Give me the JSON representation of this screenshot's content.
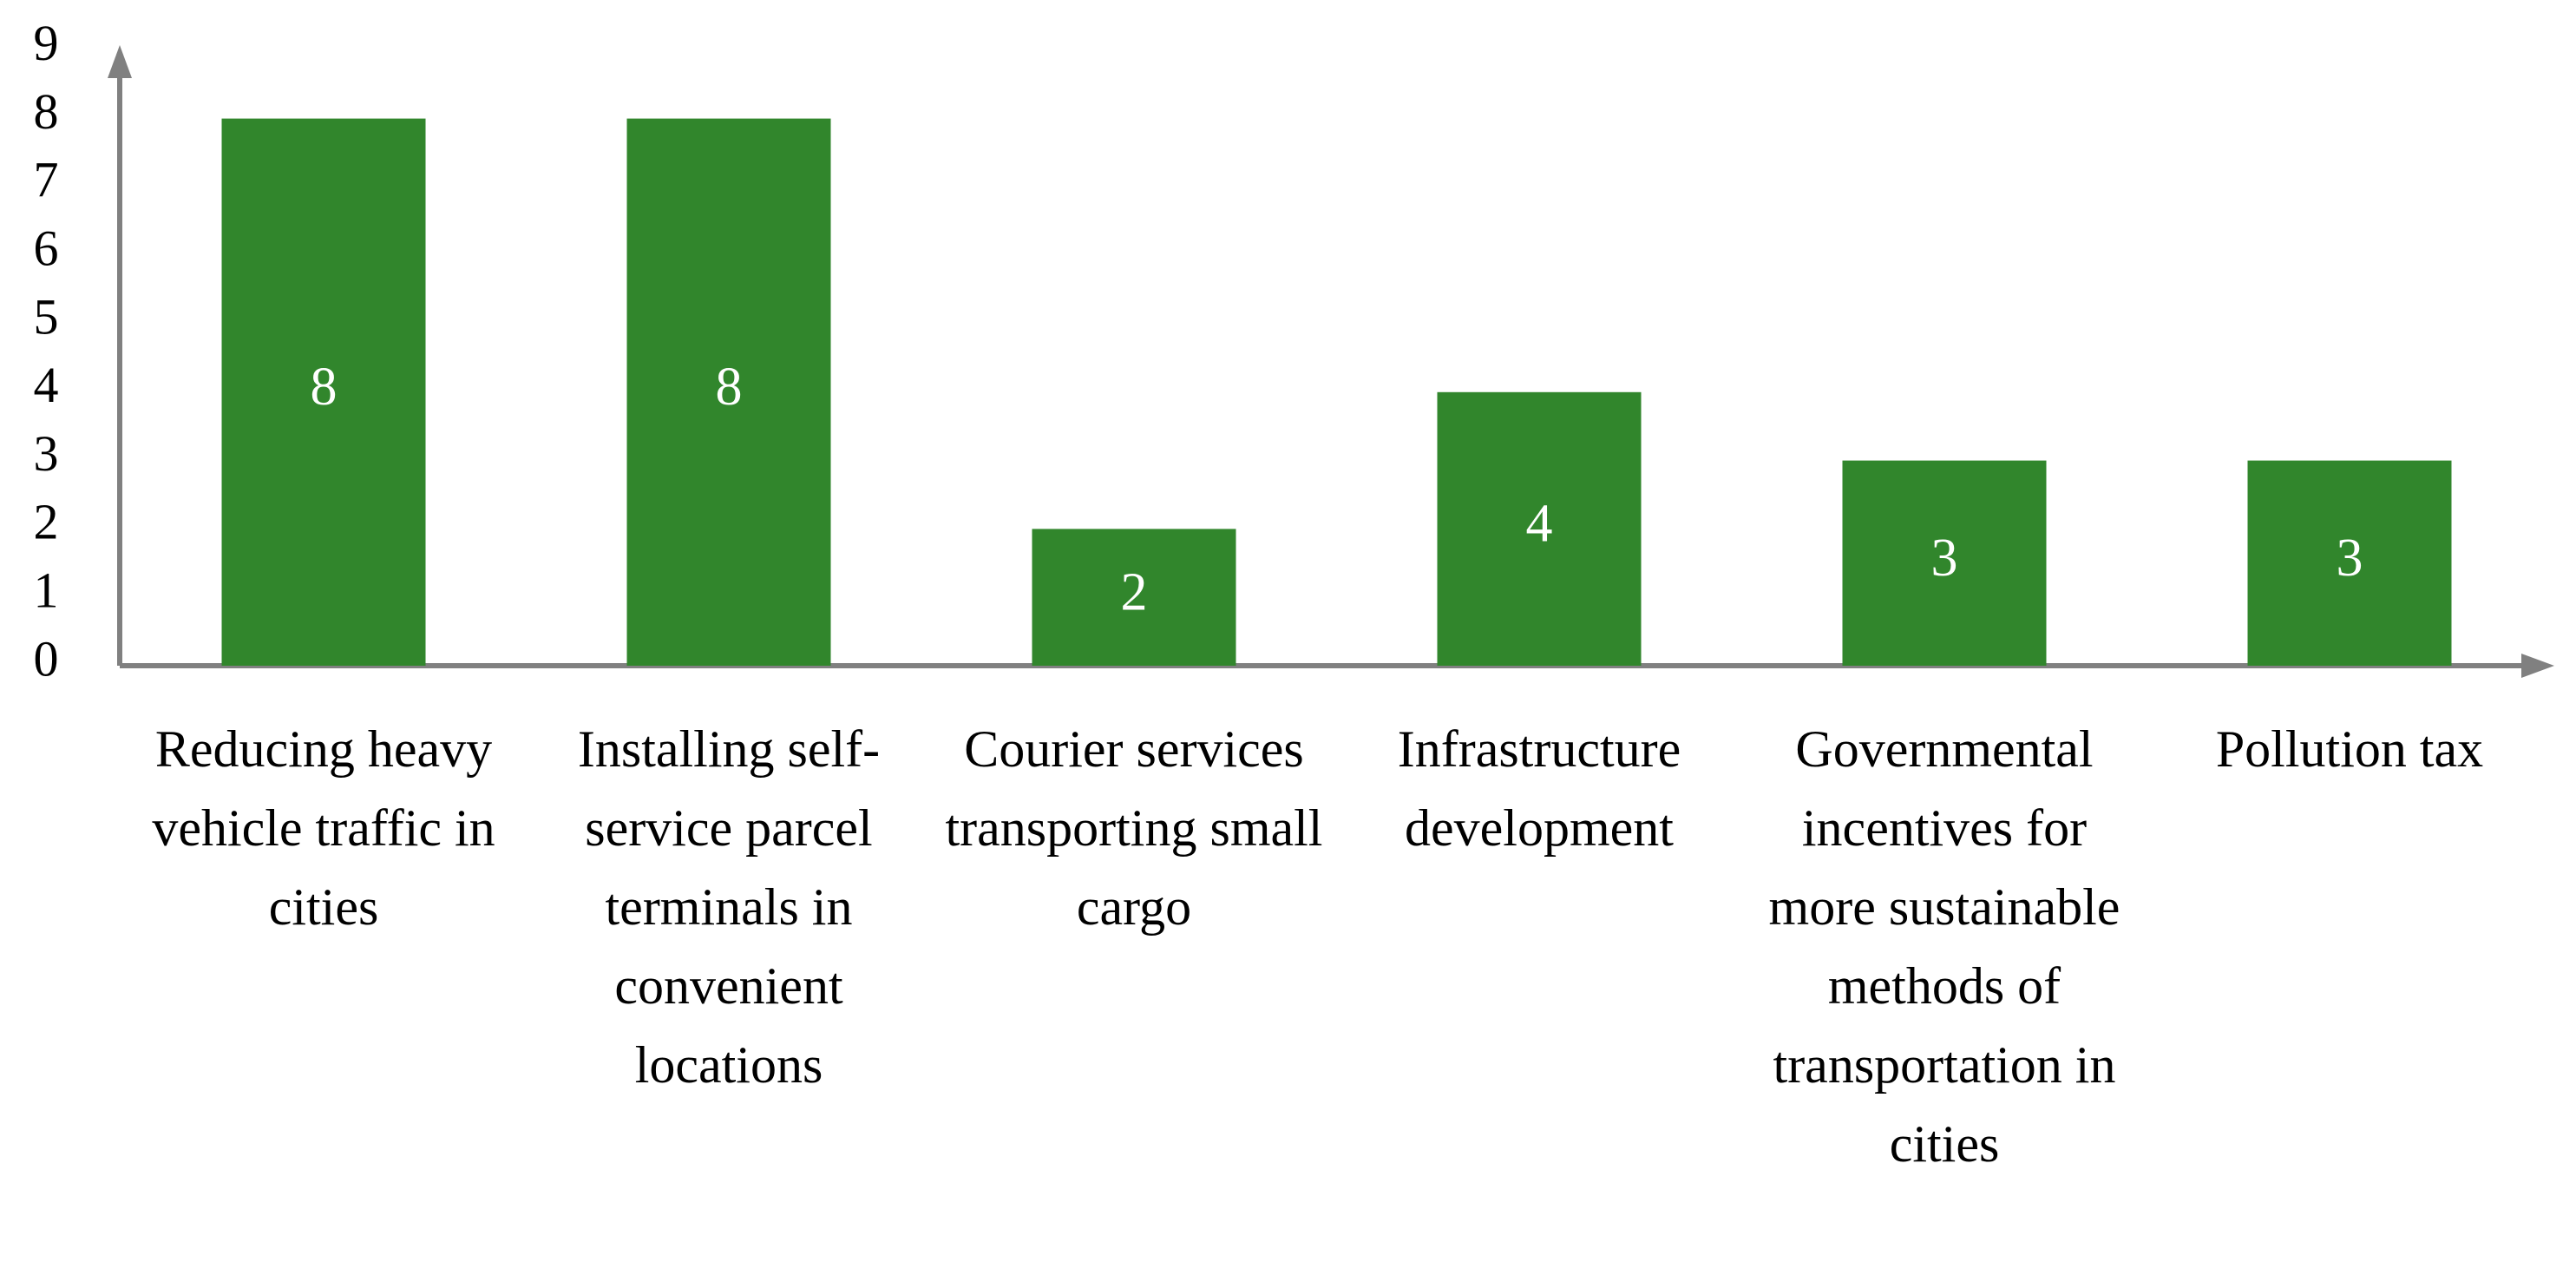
{
  "chart_data": {
    "type": "bar",
    "categories": [
      "Reducing heavy vehicle traffic in cities",
      "Installing self-service parcel terminals in convenient locations",
      "Courier services transporting small cargo",
      "Infrastructure development",
      "Governmental incentives for more sustainable methods of transportation in cities",
      "Pollution tax"
    ],
    "values": [
      8,
      8,
      2,
      4,
      3,
      3
    ],
    "color": "#31862c",
    "ylim": [
      0,
      9
    ],
    "yticks": [
      0,
      1,
      2,
      3,
      4,
      5,
      6,
      7,
      8,
      9
    ],
    "grid": false
  }
}
